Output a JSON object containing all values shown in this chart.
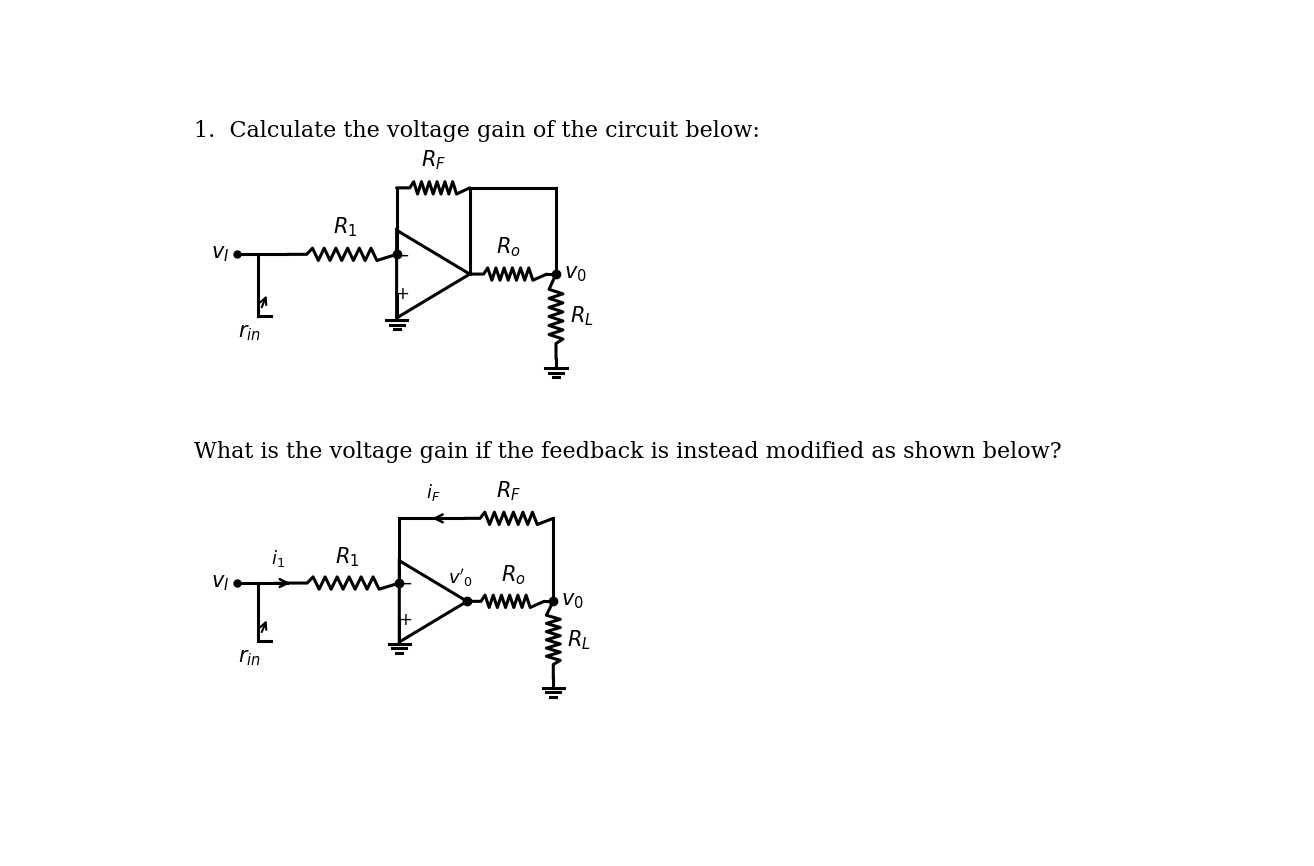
{
  "title1": "1.  Calculate the voltage gain of the circuit below:",
  "title2": "What is the voltage gain if the feedback is instead modified as shown below?",
  "bg_color": "#ffffff",
  "line_color": "#000000",
  "lw": 2.2,
  "fs_title": 16,
  "fs_label": 15,
  "fs_small": 13
}
